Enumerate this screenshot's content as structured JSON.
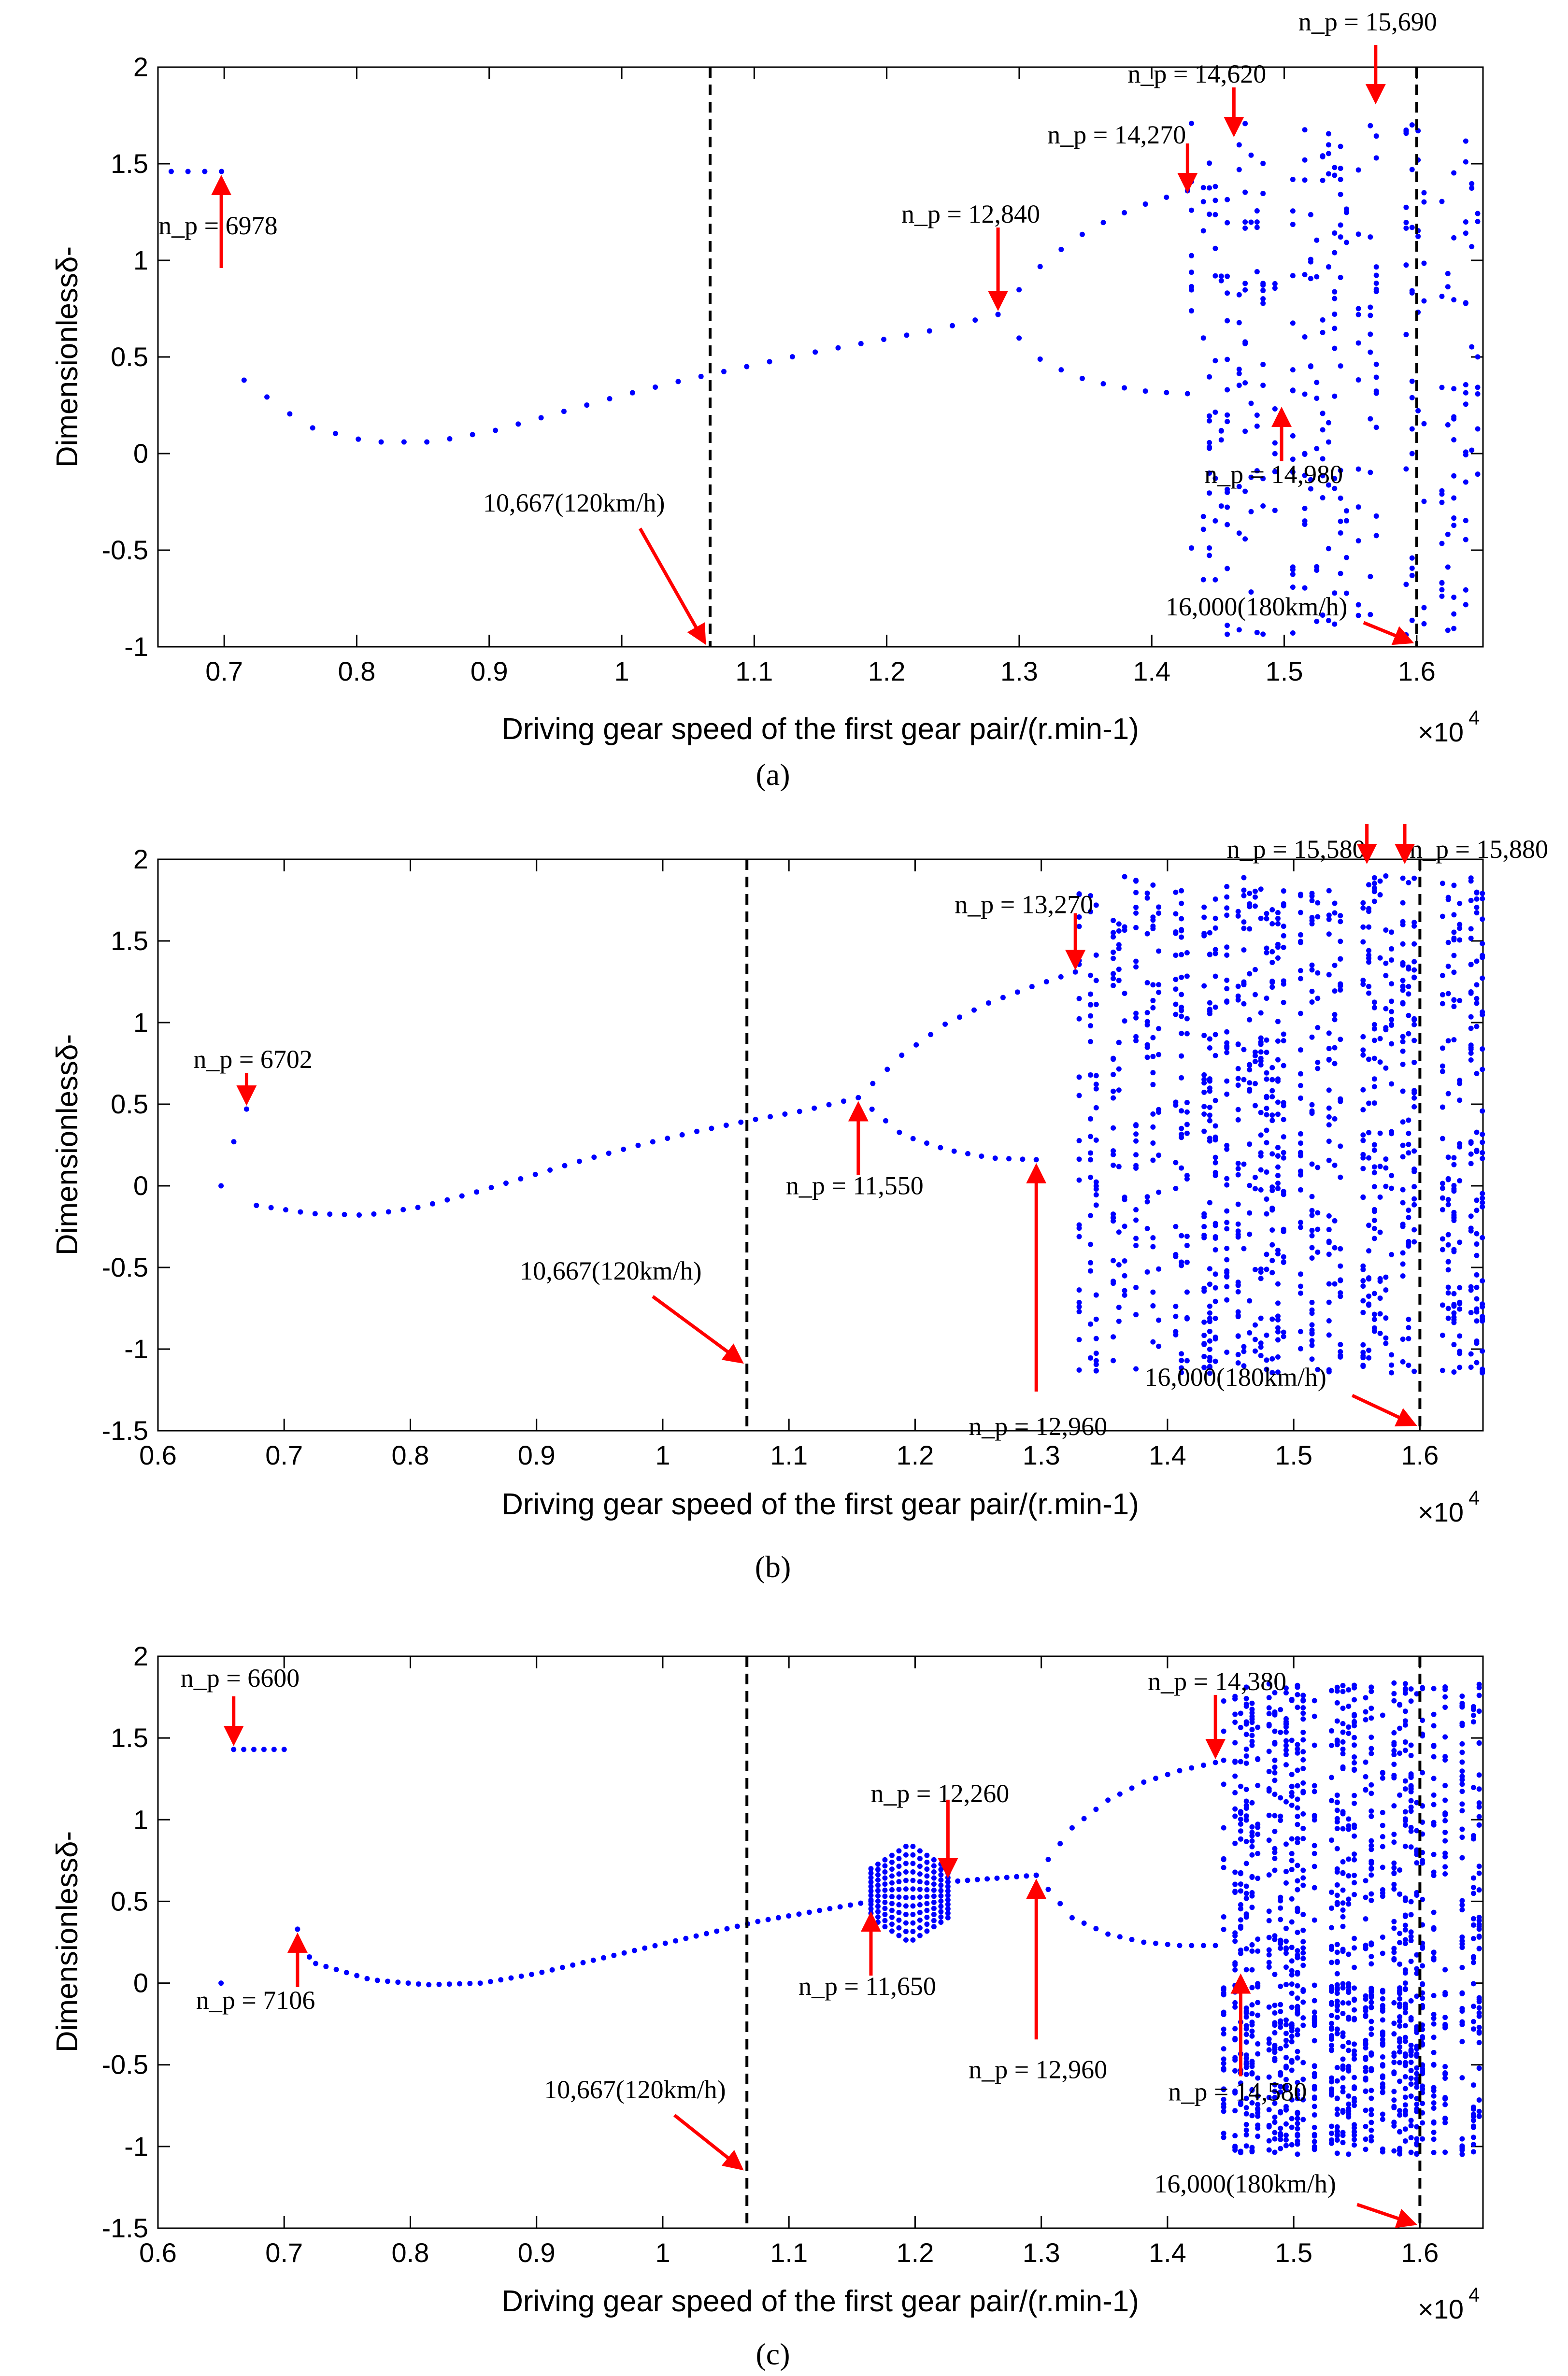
{
  "figure": {
    "panel_labels": [
      "(a)",
      "(b)",
      "(c)"
    ]
  },
  "colors": {
    "points": "#0000ff",
    "arrows": "#ff0000",
    "dashed_lines": "#000000"
  },
  "chart_data": [
    {
      "type": "scatter",
      "panel": "(a)",
      "xlabel": "Driving gear speed of the first gear pair/(r.min-1)",
      "ylabel": "Dimensionlessδ-",
      "x_multiplier": "×10",
      "x_multiplier_exp": "4",
      "xlim": [
        0.65,
        1.65
      ],
      "ylim": [
        -1,
        2
      ],
      "xticks": [
        "0.7",
        "0.8",
        "0.9",
        "1",
        "1.1",
        "1.2",
        "1.3",
        "1.4",
        "1.5",
        "1.6"
      ],
      "yticks": [
        "-1",
        "-0.5",
        "0",
        "0.5",
        "1",
        "1.5",
        "2"
      ],
      "grid": false,
      "vlines": [
        {
          "x": 1.0667,
          "label": "10,667(120km/h)"
        },
        {
          "x": 1.6,
          "label": "16,000(180km/h)"
        }
      ],
      "annotations": [
        {
          "text": "n_p = 6978",
          "x": 0.6978,
          "y": 1.46
        },
        {
          "text": "n_p = 12,840",
          "x": 1.284,
          "y": 0.72
        },
        {
          "text": "n_p = 14,270",
          "x": 1.427,
          "y": 1.33
        },
        {
          "text": "n_p = 14,620",
          "x": 1.462,
          "y": 1.62
        },
        {
          "text": "n_p = 15,690",
          "x": 1.569,
          "y": 1.79
        },
        {
          "text": "n_p = 14,980",
          "x": 1.498,
          "y": 0.26
        }
      ],
      "series": [
        {
          "kind": "branch",
          "segments": [
            {
              "x_from": 0.66,
              "x_to": 0.698,
              "y": [
                1.46,
                1.46
              ],
              "n": 4
            },
            {
              "x_from": 0.715,
              "x_to": 1.284,
              "y": [
                0.38,
                0.14,
                0.06,
                0.06,
                0.12,
                0.21,
                0.3,
                0.38,
                0.45,
                0.52,
                0.58,
                0.64,
                0.72
              ],
              "n": 34
            },
            {
              "x_from": 1.284,
              "x_to": 1.427,
              "y": [
                0.72,
                0.95,
                1.11,
                1.22,
                1.3,
                1.36
              ],
              "n": 10
            },
            {
              "x_from": 1.284,
              "x_to": 1.427,
              "y": [
                0.72,
                0.5,
                0.4,
                0.35,
                0.32,
                0.31
              ],
              "n": 10
            }
          ]
        },
        {
          "kind": "chaotic",
          "x_from": 1.43,
          "x_to": 1.65,
          "y_bands": [
            [
              -0.95,
              1.72
            ]
          ],
          "density": 14
        }
      ]
    },
    {
      "type": "scatter",
      "panel": "(b)",
      "xlabel": "Driving gear speed of the first gear pair/(r.min-1)",
      "ylabel": "Dimensionlessδ-",
      "x_multiplier": "×10",
      "x_multiplier_exp": "4",
      "xlim": [
        0.6,
        1.65
      ],
      "ylim": [
        -1.5,
        2
      ],
      "xticks": [
        "0.6",
        "0.7",
        "0.8",
        "0.9",
        "1",
        "1.1",
        "1.2",
        "1.3",
        "1.4",
        "1.5",
        "1.6"
      ],
      "yticks": [
        "-1.5",
        "-1",
        "-0.5",
        "0",
        "0.5",
        "1",
        "1.5",
        "2"
      ],
      "grid": false,
      "vlines": [
        {
          "x": 1.0667,
          "label": "10,667(120km/h)"
        },
        {
          "x": 1.6,
          "label": "16,000(180km/h)"
        }
      ],
      "annotations": [
        {
          "text": "n_p = 6702",
          "x": 0.6702,
          "y": 0.47
        },
        {
          "text": "n_p = 11,550",
          "x": 1.155,
          "y": 0.54
        },
        {
          "text": "n_p = 12,960",
          "x": 1.296,
          "y": 0.16
        },
        {
          "text": "n_p = 13,270",
          "x": 1.327,
          "y": 1.3
        },
        {
          "text": "n_p = 15,580",
          "x": 1.558,
          "y": 1.95
        },
        {
          "text": "n_p = 15,880",
          "x": 1.588,
          "y": 1.95
        }
      ],
      "series": [
        {
          "kind": "branch",
          "segments": [
            {
              "x_from": 0.65,
              "x_to": 0.6702,
              "y": [
                0.0,
                0.27,
                0.47
              ],
              "n": 3
            },
            {
              "x_from": 0.678,
              "x_to": 1.155,
              "y": [
                -0.12,
                -0.17,
                -0.18,
                -0.13,
                -0.04,
                0.06,
                0.16,
                0.25,
                0.33,
                0.4,
                0.46,
                0.54
              ],
              "n": 42
            },
            {
              "x_from": 1.155,
              "x_to": 1.327,
              "y": [
                0.54,
                0.8,
                0.99,
                1.12,
                1.22,
                1.31
              ],
              "n": 16
            },
            {
              "x_from": 1.155,
              "x_to": 1.296,
              "y": [
                0.54,
                0.31,
                0.22,
                0.17,
                0.16
              ],
              "n": 14
            }
          ]
        },
        {
          "kind": "chaotic",
          "x_from": 1.33,
          "x_to": 1.65,
          "y_bands": [
            [
              -1.15,
              1.9
            ]
          ],
          "density": 30
        }
      ]
    },
    {
      "type": "scatter",
      "panel": "(c)",
      "xlabel": "Driving gear speed of the first gear pair/(r.min-1)",
      "ylabel": "Dimensionlessδ-",
      "x_multiplier": "×10",
      "x_multiplier_exp": "4",
      "xlim": [
        0.6,
        1.65
      ],
      "ylim": [
        -1.5,
        2
      ],
      "xticks": [
        "0.6",
        "0.7",
        "0.8",
        "0.9",
        "1",
        "1.1",
        "1.2",
        "1.3",
        "1.4",
        "1.5",
        "1.6"
      ],
      "yticks": [
        "-1.5",
        "-1",
        "-0.5",
        "0",
        "0.5",
        "1",
        "1.5",
        "2"
      ],
      "grid": false,
      "vlines": [
        {
          "x": 1.0667,
          "label": "10,667(120km/h)"
        },
        {
          "x": 1.6,
          "label": "16,000(180km/h)"
        }
      ],
      "annotations": [
        {
          "text": "n_p = 6600",
          "x": 0.66,
          "y": 1.43
        },
        {
          "text": "n_p = 7106",
          "x": 0.7106,
          "y": 0.33
        },
        {
          "text": "n_p = 11,650",
          "x": 1.165,
          "y": 0.46
        },
        {
          "text": "n_p = 12,260",
          "x": 1.226,
          "y": 0.62
        },
        {
          "text": "n_p = 12,960",
          "x": 1.296,
          "y": 0.66
        },
        {
          "text": "n_p = 14,380",
          "x": 1.438,
          "y": 1.35
        },
        {
          "text": "n_p = 14,580",
          "x": 1.458,
          "y": 0.08
        }
      ],
      "series": [
        {
          "kind": "branch",
          "segments": [
            {
              "x_from": 0.66,
              "x_to": 0.7,
              "y": [
                1.43,
                1.43
              ],
              "n": 6
            },
            {
              "x_from": 0.65,
              "x_to": 0.65,
              "y": [
                0.0
              ],
              "n": 1
            },
            {
              "x_from": 0.7106,
              "x_to": 0.72,
              "y": [
                0.33,
                0.16
              ],
              "n": 2
            },
            {
              "x_from": 0.725,
              "x_to": 1.165,
              "y": [
                0.12,
                0.02,
                -0.01,
                0.0,
                0.06,
                0.14,
                0.22,
                0.3,
                0.38,
                0.44,
                0.5
              ],
              "n": 55
            },
            {
              "x_from": 1.226,
              "x_to": 1.296,
              "y": [
                0.62,
                0.64,
                0.66
              ],
              "n": 10
            },
            {
              "x_from": 1.296,
              "x_to": 1.438,
              "y": [
                0.66,
                0.95,
                1.12,
                1.23,
                1.3,
                1.35
              ],
              "n": 16
            },
            {
              "x_from": 1.296,
              "x_to": 1.438,
              "y": [
                0.66,
                0.4,
                0.3,
                0.25,
                0.23,
                0.23
              ],
              "n": 16
            }
          ]
        },
        {
          "kind": "band",
          "x_from": 1.165,
          "x_to": 1.226,
          "y_center": 0.55,
          "half_width": [
            0.15,
            0.3,
            0.15
          ],
          "n": 12
        },
        {
          "kind": "chaotic",
          "x_from": 1.44,
          "x_to": 1.65,
          "y_bands": [
            [
              0.05,
              1.85
            ],
            [
              -1.05,
              0.0
            ]
          ],
          "density": 24
        }
      ]
    }
  ]
}
